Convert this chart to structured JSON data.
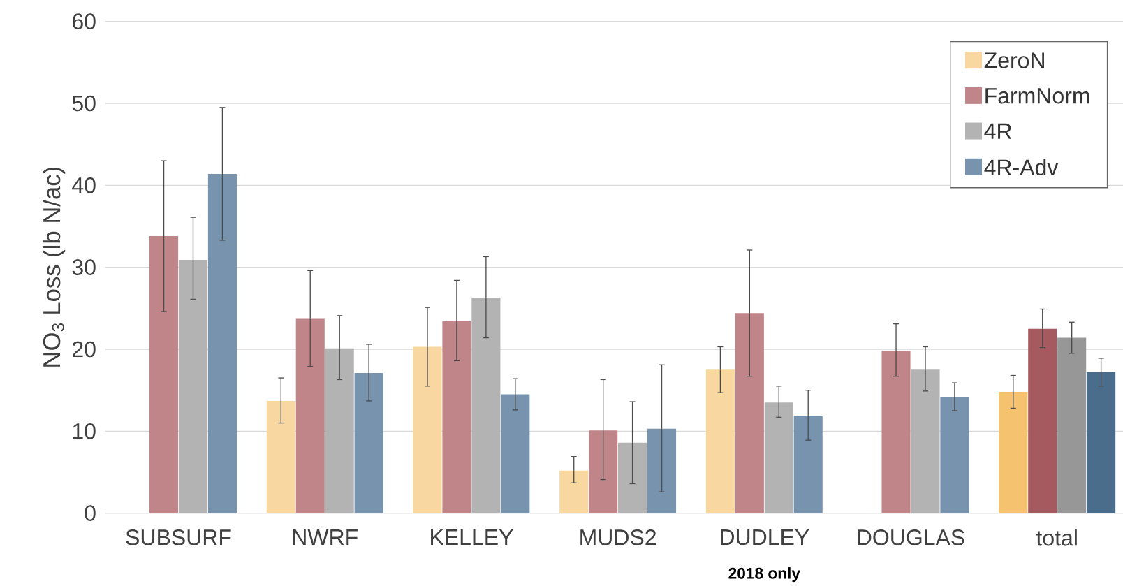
{
  "chart_data": {
    "type": "bar",
    "ylabel": "NO$_{3}$ Loss (lb N/ac)",
    "categories": [
      "SUBSURF",
      "NWRF",
      "KELLEY",
      "MUDS2",
      "DUDLEY",
      "DOUGLAS",
      "total"
    ],
    "series": [
      {
        "name": "ZeroN",
        "color": "#f8d7a0",
        "colors": [
          "#f8d7a0",
          "#f8d7a0",
          "#f8d7a0",
          "#f8d7a0",
          "#f8d7a0",
          "#f8d7a0",
          "#f5c26f"
        ],
        "values": [
          null,
          13.7,
          20.3,
          5.2,
          17.5,
          null,
          14.8
        ],
        "errors": [
          null,
          [
            11.0,
            16.5
          ],
          [
            15.5,
            25.1
          ],
          [
            3.7,
            6.9
          ],
          [
            14.7,
            20.3
          ],
          null,
          [
            12.8,
            16.8
          ]
        ]
      },
      {
        "name": "FarmNorm",
        "color": "#bf8589",
        "colors": [
          "#bf8589",
          "#bf8589",
          "#bf8589",
          "#bf8589",
          "#bf8589",
          "#bf8589",
          "#a55a60"
        ],
        "values": [
          33.8,
          23.7,
          23.4,
          10.1,
          24.4,
          19.8,
          22.5
        ],
        "errors": [
          [
            24.6,
            43.0
          ],
          [
            17.9,
            29.6
          ],
          [
            18.6,
            28.4
          ],
          [
            4.1,
            16.3
          ],
          [
            16.7,
            32.1
          ],
          [
            16.7,
            23.1
          ],
          [
            20.2,
            24.9
          ]
        ]
      },
      {
        "name": "4R",
        "color": "#b3b3b3",
        "colors": [
          "#b3b3b3",
          "#b3b3b3",
          "#b3b3b3",
          "#b3b3b3",
          "#b3b3b3",
          "#b3b3b3",
          "#979797"
        ],
        "values": [
          30.9,
          20.1,
          26.3,
          8.6,
          13.5,
          17.5,
          21.4
        ],
        "errors": [
          [
            26.1,
            36.1
          ],
          [
            16.3,
            24.1
          ],
          [
            21.4,
            31.3
          ],
          [
            3.6,
            13.6
          ],
          [
            11.7,
            15.5
          ],
          [
            14.9,
            20.3
          ],
          [
            19.5,
            23.3
          ]
        ]
      },
      {
        "name": "4R-Adv",
        "color": "#7793ad",
        "colors": [
          "#7793ad",
          "#7793ad",
          "#7793ad",
          "#7793ad",
          "#7793ad",
          "#7793ad",
          "#4a6d8c"
        ],
        "values": [
          41.4,
          17.1,
          14.5,
          10.3,
          11.9,
          14.2,
          17.2
        ],
        "errors": [
          [
            33.3,
            49.5
          ],
          [
            13.7,
            20.6
          ],
          [
            12.6,
            16.4
          ],
          [
            2.6,
            18.1
          ],
          [
            8.9,
            15.0
          ],
          [
            12.5,
            15.9
          ],
          [
            15.5,
            18.9
          ]
        ]
      }
    ],
    "ylim": [
      0,
      60
    ],
    "yticks": [
      0,
      10,
      20,
      30,
      40,
      50,
      60
    ],
    "grid": "y",
    "legend": "top right",
    "annotations": [
      "2018 only"
    ]
  }
}
